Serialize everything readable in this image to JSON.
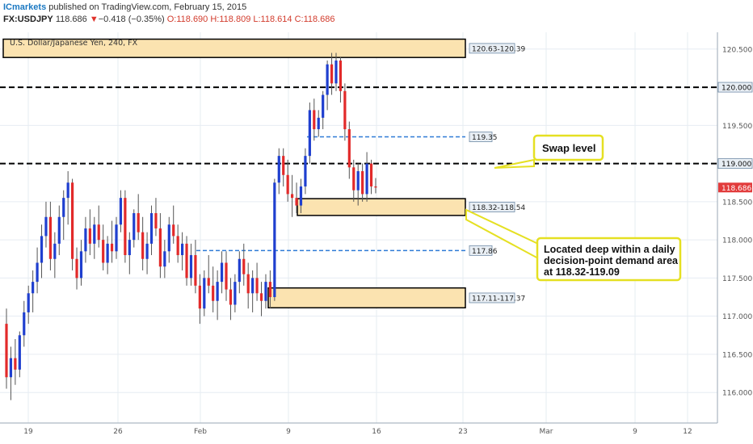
{
  "header": {
    "brand": "ICmarkets",
    "published": " published on TradingView.com, February 15, 2015",
    "symbol": "FX:USDJPY",
    "last": "118.686",
    "change_arrow": "▼",
    "change": "−0.418 (−0.35%)",
    "ohlc_o": "O:118.690",
    "ohlc_h": "H:118.809",
    "ohlc_l": "L:118.614",
    "ohlc_c": "C:118.686"
  },
  "chart_data": {
    "type": "candlestick",
    "title": "U.S. Dollar/Japanese Yen, 240, FX",
    "ylim": [
      115.6,
      120.72
    ],
    "y_ticks": [
      "120.500",
      "120.000",
      "119.500",
      "119.000",
      "118.500",
      "118.000",
      "117.500",
      "117.000",
      "116.500",
      "116.000"
    ],
    "x_ticks": [
      "19",
      "26",
      "Feb",
      "9",
      "16",
      "23",
      "Mar",
      "9",
      "12"
    ],
    "last_price_label": "118.686",
    "zones": [
      {
        "label": "120.63-120.39",
        "low": 120.39,
        "high": 120.63
      },
      {
        "label": "118.32-118.54",
        "low": 118.32,
        "high": 118.54
      },
      {
        "label": "117.11-117.37",
        "low": 117.11,
        "high": 117.37
      }
    ],
    "levels": [
      {
        "label": "120.000",
        "value": 120.0,
        "style": "black-dashed"
      },
      {
        "label": "119.000",
        "value": 119.0,
        "style": "black-dashed"
      },
      {
        "label": "119.35",
        "value": 119.35,
        "style": "blue-dashed"
      },
      {
        "label": "117.86",
        "value": 117.86,
        "style": "blue-dashed"
      }
    ],
    "annotations": [
      {
        "lines": [
          "Swap level"
        ]
      },
      {
        "lines": [
          "Located deep within a daily",
          "decision-point demand area",
          "at 118.32-119.09"
        ]
      }
    ],
    "candles_ohlc": [
      [
        116.9,
        117.1,
        116.05,
        116.2
      ],
      [
        116.2,
        116.6,
        115.9,
        116.45
      ],
      [
        116.45,
        116.7,
        116.1,
        116.3
      ],
      [
        116.3,
        116.8,
        116.2,
        116.75
      ],
      [
        116.75,
        117.2,
        116.6,
        117.05
      ],
      [
        117.05,
        117.4,
        116.9,
        117.3
      ],
      [
        117.3,
        117.6,
        117.05,
        117.45
      ],
      [
        117.45,
        117.9,
        117.3,
        117.7
      ],
      [
        117.7,
        118.2,
        117.5,
        118.05
      ],
      [
        118.05,
        118.5,
        117.9,
        118.3
      ],
      [
        118.3,
        118.5,
        117.6,
        117.75
      ],
      [
        117.75,
        118.1,
        117.5,
        117.95
      ],
      [
        117.95,
        118.45,
        117.8,
        118.3
      ],
      [
        118.3,
        118.65,
        118.0,
        118.55
      ],
      [
        118.55,
        118.9,
        118.2,
        118.75
      ],
      [
        118.75,
        118.8,
        117.6,
        117.75
      ],
      [
        117.75,
        117.9,
        117.35,
        117.5
      ],
      [
        117.5,
        118.0,
        117.4,
        117.85
      ],
      [
        117.85,
        118.3,
        117.7,
        118.15
      ],
      [
        118.15,
        118.4,
        117.8,
        117.95
      ],
      [
        117.95,
        118.3,
        117.75,
        118.2
      ],
      [
        118.2,
        118.45,
        117.9,
        118.0
      ],
      [
        118.0,
        118.2,
        117.6,
        117.7
      ],
      [
        117.7,
        118.05,
        117.55,
        117.95
      ],
      [
        117.95,
        118.25,
        117.7,
        117.85
      ],
      [
        117.85,
        118.3,
        117.75,
        118.2
      ],
      [
        118.2,
        118.65,
        118.1,
        118.55
      ],
      [
        118.55,
        118.65,
        117.7,
        117.8
      ],
      [
        117.8,
        118.1,
        117.55,
        118.0
      ],
      [
        118.0,
        118.4,
        117.9,
        118.35
      ],
      [
        118.35,
        118.6,
        118.0,
        118.1
      ],
      [
        118.1,
        118.3,
        117.6,
        117.75
      ],
      [
        117.75,
        118.1,
        117.55,
        117.95
      ],
      [
        117.95,
        118.45,
        117.8,
        118.35
      ],
      [
        118.35,
        118.55,
        118.05,
        118.15
      ],
      [
        118.15,
        118.35,
        117.5,
        117.65
      ],
      [
        117.65,
        118.0,
        117.5,
        117.85
      ],
      [
        117.85,
        118.3,
        117.7,
        118.2
      ],
      [
        118.2,
        118.45,
        117.95,
        118.05
      ],
      [
        118.05,
        118.2,
        117.7,
        117.8
      ],
      [
        117.8,
        118.1,
        117.6,
        117.95
      ],
      [
        117.95,
        118.05,
        117.4,
        117.5
      ],
      [
        117.5,
        117.95,
        117.4,
        117.8
      ],
      [
        117.8,
        118.0,
        117.3,
        117.4
      ],
      [
        117.4,
        117.55,
        116.9,
        117.1
      ],
      [
        117.1,
        117.6,
        117.0,
        117.5
      ],
      [
        117.5,
        117.8,
        117.3,
        117.4
      ],
      [
        117.4,
        117.65,
        117.05,
        117.2
      ],
      [
        117.2,
        117.6,
        116.95,
        117.45
      ],
      [
        117.45,
        117.85,
        117.3,
        117.7
      ],
      [
        117.7,
        117.85,
        117.2,
        117.35
      ],
      [
        117.35,
        117.5,
        116.95,
        117.15
      ],
      [
        117.15,
        117.55,
        117.05,
        117.45
      ],
      [
        117.45,
        117.85,
        117.3,
        117.75
      ],
      [
        117.75,
        117.95,
        117.4,
        117.55
      ],
      [
        117.55,
        117.7,
        117.1,
        117.3
      ],
      [
        117.3,
        117.6,
        117.05,
        117.5
      ],
      [
        117.5,
        117.7,
        117.2,
        117.3
      ],
      [
        117.3,
        117.45,
        117.0,
        117.2
      ],
      [
        117.2,
        117.55,
        117.1,
        117.45
      ],
      [
        117.45,
        117.6,
        117.1,
        117.25
      ],
      [
        117.25,
        118.8,
        117.2,
        118.75
      ],
      [
        118.75,
        119.2,
        118.6,
        119.1
      ],
      [
        119.1,
        119.2,
        118.7,
        118.85
      ],
      [
        118.85,
        119.05,
        118.5,
        118.6
      ],
      [
        118.6,
        118.85,
        118.3,
        118.55
      ],
      [
        118.55,
        118.75,
        118.35,
        118.45
      ],
      [
        118.45,
        118.8,
        118.35,
        118.7
      ],
      [
        118.7,
        119.2,
        118.6,
        119.1
      ],
      [
        119.1,
        119.8,
        119.0,
        119.7
      ],
      [
        119.7,
        119.85,
        119.3,
        119.45
      ],
      [
        119.45,
        119.7,
        119.35,
        119.6
      ],
      [
        119.6,
        119.95,
        119.45,
        119.9
      ],
      [
        119.9,
        120.35,
        119.7,
        120.3
      ],
      [
        120.3,
        120.45,
        119.9,
        120.05
      ],
      [
        120.05,
        120.45,
        119.95,
        120.35
      ],
      [
        120.35,
        120.4,
        119.8,
        119.95
      ],
      [
        119.95,
        120.05,
        119.3,
        119.45
      ],
      [
        119.45,
        119.55,
        118.8,
        118.95
      ],
      [
        118.95,
        119.05,
        118.5,
        118.65
      ],
      [
        118.65,
        119.0,
        118.45,
        118.9
      ],
      [
        118.9,
        119.0,
        118.5,
        118.6
      ],
      [
        118.6,
        119.15,
        118.5,
        119.0
      ],
      [
        119.0,
        119.05,
        118.6,
        118.7
      ],
      [
        118.7,
        118.81,
        118.61,
        118.686
      ]
    ]
  }
}
